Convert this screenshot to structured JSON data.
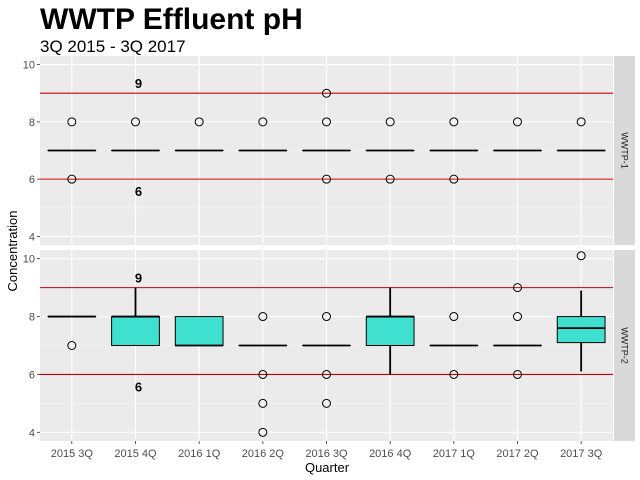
{
  "chart_data": {
    "type": "box",
    "title": "WWTP Effluent pH",
    "subtitle": "3Q 2015 - 3Q 2017",
    "xlabel": "Quarter",
    "ylabel": "Concentration",
    "categories": [
      "2015 3Q",
      "2015 4Q",
      "2016 1Q",
      "2016 2Q",
      "2016 3Q",
      "2016 4Q",
      "2017 1Q",
      "2017 2Q",
      "2017 3Q"
    ],
    "ylim": [
      3.7,
      10.3
    ],
    "yticks": [
      4,
      6,
      8,
      10
    ],
    "grid": true,
    "colors": {
      "box_fill": "#40E0D0",
      "reference_line": "#CC0000",
      "panel_bg": "#EBEBEB",
      "strip_bg": "#D9D9D9"
    },
    "reference_lines": [
      {
        "value": 9,
        "label": "9"
      },
      {
        "value": 6,
        "label": "6"
      }
    ],
    "facets": [
      {
        "name": "WWTP-1",
        "boxes": [
          {
            "q1": 7,
            "median": 7,
            "q3": 7,
            "whisker_low": 7,
            "whisker_high": 7,
            "outliers": [
              8,
              6
            ]
          },
          {
            "q1": 7,
            "median": 7,
            "q3": 7,
            "whisker_low": 7,
            "whisker_high": 7,
            "outliers": [
              8
            ]
          },
          {
            "q1": 7,
            "median": 7,
            "q3": 7,
            "whisker_low": 7,
            "whisker_high": 7,
            "outliers": [
              8
            ]
          },
          {
            "q1": 7,
            "median": 7,
            "q3": 7,
            "whisker_low": 7,
            "whisker_high": 7,
            "outliers": [
              8
            ]
          },
          {
            "q1": 7,
            "median": 7,
            "q3": 7,
            "whisker_low": 7,
            "whisker_high": 7,
            "outliers": [
              9,
              8,
              6
            ]
          },
          {
            "q1": 7,
            "median": 7,
            "q3": 7,
            "whisker_low": 7,
            "whisker_high": 7,
            "outliers": [
              8,
              6
            ]
          },
          {
            "q1": 7,
            "median": 7,
            "q3": 7,
            "whisker_low": 7,
            "whisker_high": 7,
            "outliers": [
              8,
              6
            ]
          },
          {
            "q1": 7,
            "median": 7,
            "q3": 7,
            "whisker_low": 7,
            "whisker_high": 7,
            "outliers": [
              8
            ]
          },
          {
            "q1": 7,
            "median": 7,
            "q3": 7,
            "whisker_low": 7,
            "whisker_high": 7,
            "outliers": [
              8
            ]
          }
        ]
      },
      {
        "name": "WWTP-2",
        "boxes": [
          {
            "q1": 8,
            "median": 8,
            "q3": 8,
            "whisker_low": 8,
            "whisker_high": 8,
            "outliers": [
              7
            ]
          },
          {
            "q1": 7,
            "median": 8,
            "q3": 8,
            "whisker_low": 7,
            "whisker_high": 9,
            "outliers": []
          },
          {
            "q1": 7,
            "median": 7,
            "q3": 8,
            "whisker_low": 7,
            "whisker_high": 8,
            "outliers": []
          },
          {
            "q1": 7,
            "median": 7,
            "q3": 7,
            "whisker_low": 7,
            "whisker_high": 7,
            "outliers": [
              8,
              6,
              5,
              4
            ]
          },
          {
            "q1": 7,
            "median": 7,
            "q3": 7,
            "whisker_low": 7,
            "whisker_high": 7,
            "outliers": [
              8,
              6,
              5
            ]
          },
          {
            "q1": 7,
            "median": 8,
            "q3": 8,
            "whisker_low": 6,
            "whisker_high": 9,
            "outliers": []
          },
          {
            "q1": 7,
            "median": 7,
            "q3": 7,
            "whisker_low": 7,
            "whisker_high": 7,
            "outliers": [
              8,
              6
            ]
          },
          {
            "q1": 7,
            "median": 7,
            "q3": 7,
            "whisker_low": 7,
            "whisker_high": 7,
            "outliers": [
              9,
              8,
              6
            ]
          },
          {
            "q1": 7.1,
            "median": 7.6,
            "q3": 8,
            "whisker_low": 6.1,
            "whisker_high": 8.9,
            "outliers": [
              10.1
            ]
          }
        ]
      }
    ]
  }
}
